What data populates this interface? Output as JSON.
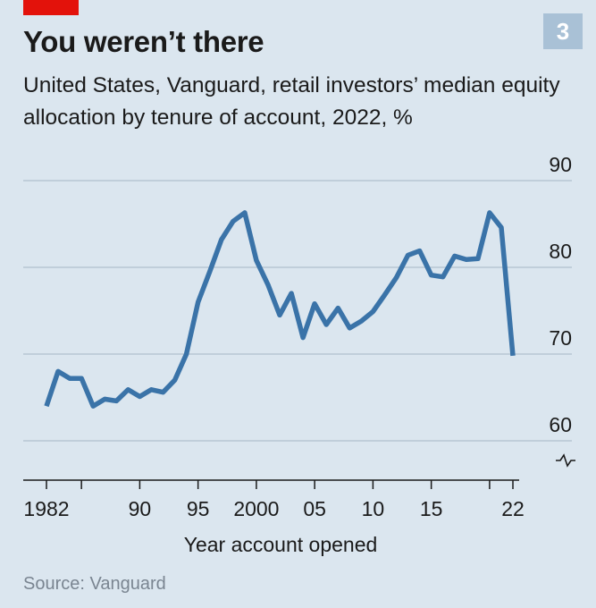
{
  "header": {
    "badge": "3",
    "title": "You weren’t there",
    "subtitle": "United States, Vanguard, retail investors’ median equity allocation by tenure of account, 2022, %"
  },
  "source": "Source: Vanguard",
  "colors": {
    "line": "#3a73a8",
    "accent": "#e3120b",
    "background": "#dbe6ef",
    "badge": "#a9c1d6",
    "grid": "#b7c6d3"
  },
  "chart_data": {
    "type": "line",
    "xlabel": "Year account opened",
    "ylabel": "",
    "xlim": [
      1982,
      2022
    ],
    "ylim": [
      60,
      90
    ],
    "y_ticks": [
      "90",
      "80",
      "70",
      "60"
    ],
    "y_tick_values": [
      90,
      80,
      70,
      60
    ],
    "x_ticks": [
      "1982",
      "90",
      "95",
      "2000",
      "05",
      "10",
      "15",
      "22"
    ],
    "x_tick_values": [
      1982,
      1990,
      1995,
      2000,
      2005,
      2010,
      2015,
      2022
    ],
    "axis_break": true,
    "grid": true,
    "series": [
      {
        "x": [
          1982,
          1983,
          1984,
          1985,
          1986,
          1987,
          1988,
          1989,
          1990,
          1991,
          1992,
          1993,
          1994,
          1995,
          1996,
          1997,
          1998,
          1999,
          2000,
          2001,
          2002,
          2003,
          2004,
          2005,
          2006,
          2007,
          2008,
          2009,
          2010,
          2011,
          2012,
          2013,
          2014,
          2015,
          2016,
          2017,
          2018,
          2019,
          2020,
          2021,
          2022
        ],
        "values": [
          64,
          68,
          67.2,
          67.2,
          64,
          64.8,
          64.6,
          65.9,
          65.1,
          65.9,
          65.6,
          67,
          70,
          76,
          79.5,
          83.2,
          85.3,
          86.3,
          80.8,
          78,
          74.5,
          77,
          71.9,
          75.8,
          73.4,
          75.3,
          73,
          73.8,
          74.9,
          76.8,
          78.8,
          81.4,
          81.9,
          79.1,
          78.9,
          81.3,
          80.9,
          81,
          86.3,
          84.6,
          69.8
        ]
      }
    ]
  }
}
